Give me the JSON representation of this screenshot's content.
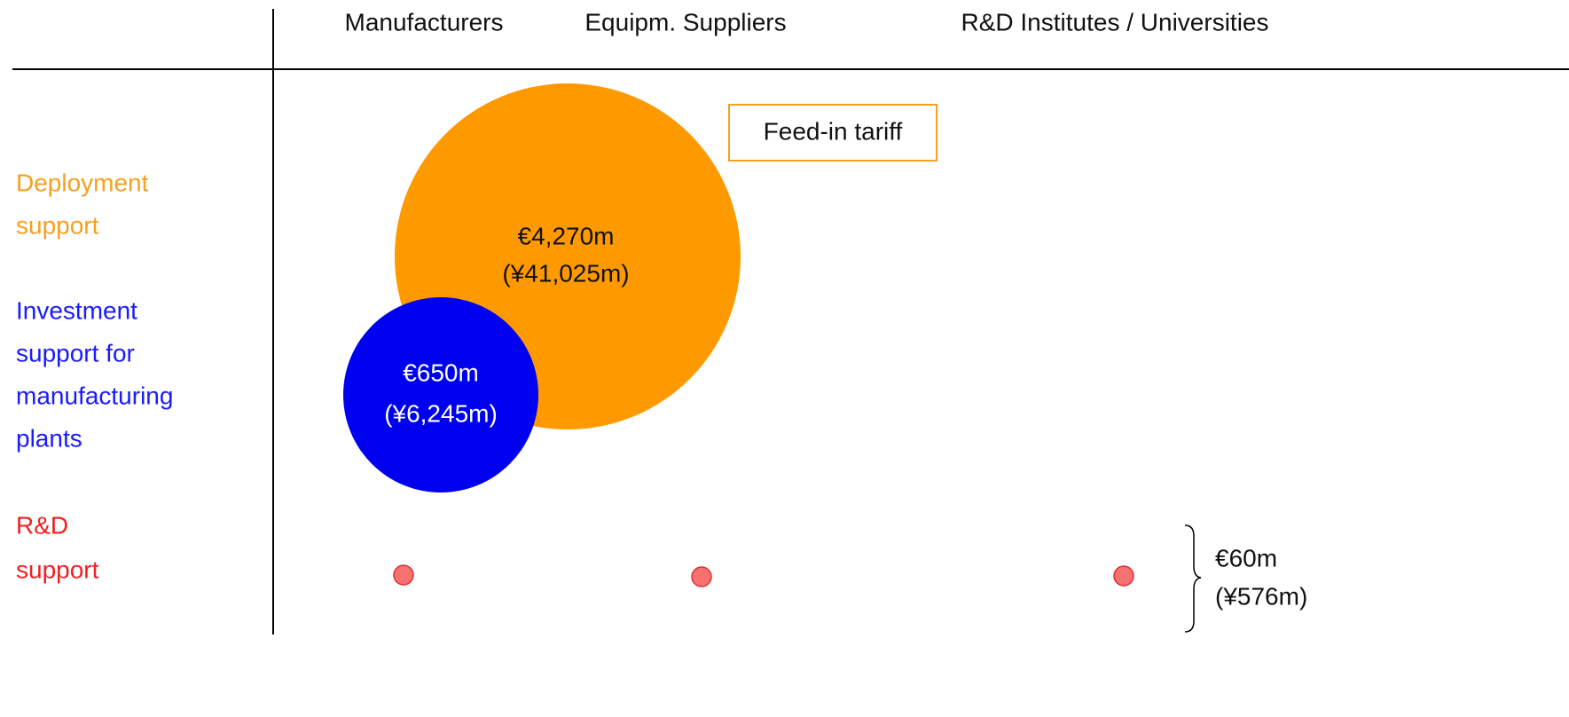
{
  "columns": [
    "Manufacturers",
    "Equipm. Suppliers",
    "R&D Institutes / Universities"
  ],
  "rows": [
    {
      "label": [
        "Deployment",
        "support"
      ]
    },
    {
      "label": [
        "Investment",
        "support for",
        "manufacturing",
        "plants"
      ]
    },
    {
      "label": [
        "R&D",
        "support"
      ]
    }
  ],
  "bubbles": [
    {
      "label": [
        "€4,270m",
        "(¥41,025m)"
      ]
    },
    {
      "label": [
        "€650m",
        "(¥6,245m)"
      ]
    }
  ],
  "callout": "Feed-in tariff",
  "rd_total": [
    "€60m",
    "(¥576m)"
  ]
}
